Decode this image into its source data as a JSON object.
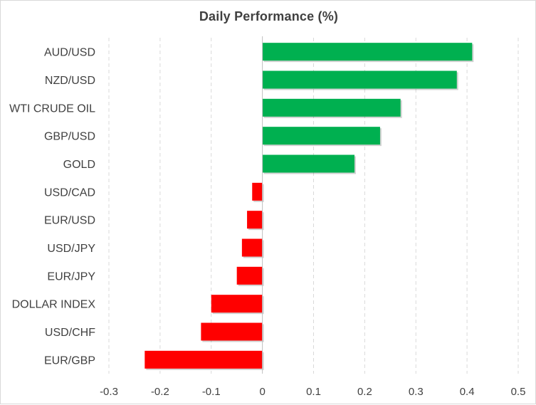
{
  "chart_data": {
    "type": "bar",
    "orientation": "horizontal",
    "title": "Daily Performance (%)",
    "categories": [
      "AUD/USD",
      "NZD/USD",
      "WTI CRUDE OIL",
      "GBP/USD",
      "GOLD",
      "USD/CAD",
      "EUR/USD",
      "USD/JPY",
      "EUR/JPY",
      "DOLLAR INDEX",
      "USD/CHF",
      "EUR/GBP"
    ],
    "values": [
      0.41,
      0.38,
      0.27,
      0.23,
      0.18,
      -0.02,
      -0.03,
      -0.04,
      -0.05,
      -0.1,
      -0.12,
      -0.23
    ],
    "xlim": [
      -0.3,
      0.5
    ],
    "xticks": [
      -0.3,
      -0.2,
      -0.1,
      0,
      0.1,
      0.2,
      0.3,
      0.4,
      0.5
    ],
    "xtick_labels": [
      "-0.3",
      "-0.2",
      "-0.1",
      "0",
      "0.1",
      "0.2",
      "0.3",
      "0.4",
      "0.5"
    ],
    "grid": "vertical-dashed",
    "legend": "none",
    "colors": {
      "positive": "#00b050",
      "negative": "#ff0000",
      "grid": "#d9d9d9",
      "text": "#404040"
    }
  }
}
